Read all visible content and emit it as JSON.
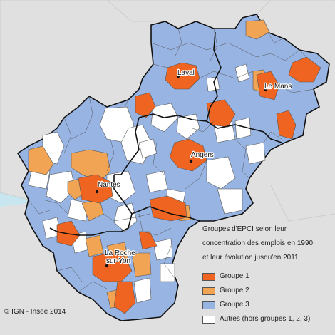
{
  "map": {
    "legend": {
      "title_line1": "Groupes d'EPCI selon leur",
      "title_line2": "concentration des emplois en 1990",
      "title_line3": "et leur évolution jusqu'en 2011",
      "items": [
        {
          "label": "Groupe 1",
          "color": "#ee6420"
        },
        {
          "label": "Groupe 2",
          "color": "#f2a455"
        },
        {
          "label": "Groupe 3",
          "color": "#98b4e2"
        },
        {
          "label": "Autres (hors groupes 1, 2, 3)",
          "color": "#ffffff"
        }
      ]
    },
    "cities": {
      "laval": "Laval",
      "le_mans": "Le Mans",
      "angers": "Angers",
      "nantes": "Nantes",
      "la_roche_line1": "La Roche-",
      "la_roche_line2": "sur-Yon"
    },
    "credit": "© IGN - Insee 2014",
    "colors": {
      "sea": "#c8e6f0",
      "land_outside": "#e0e0e0",
      "border": "#555555",
      "region_outline": "#111111"
    }
  }
}
